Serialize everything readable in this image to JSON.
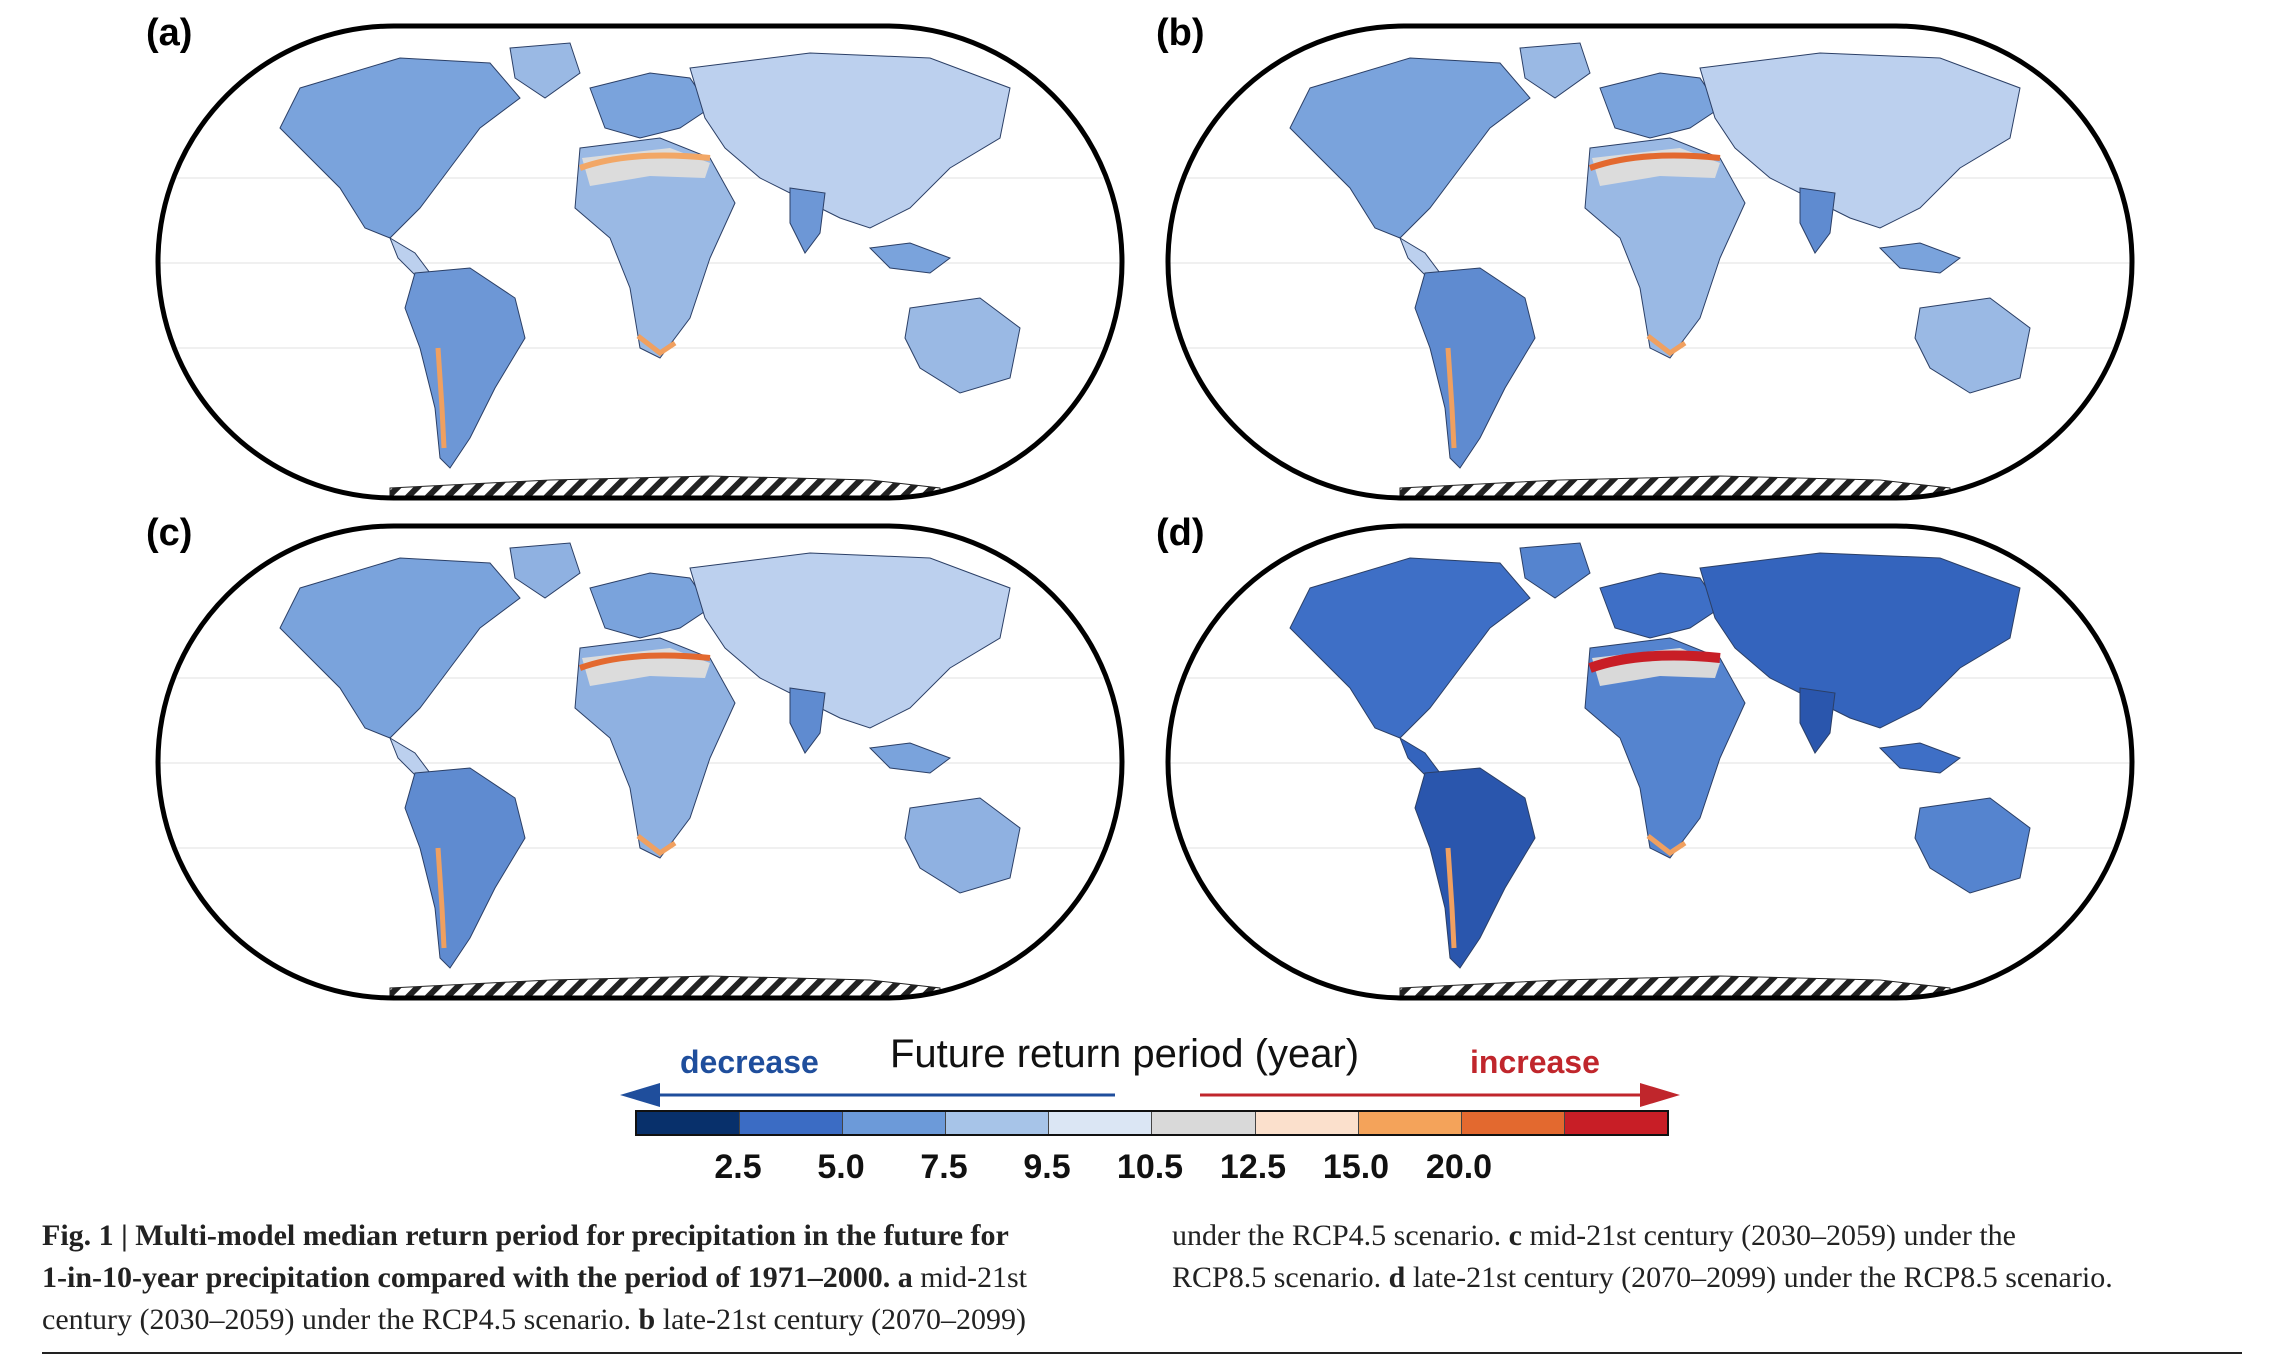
{
  "panels": [
    {
      "label": "(a)",
      "variant": "a"
    },
    {
      "label": "(b)",
      "variant": "b"
    },
    {
      "label": "(c)",
      "variant": "c"
    },
    {
      "label": "(d)",
      "variant": "d"
    }
  ],
  "legend": {
    "title": "Future return period (year)",
    "decrease_label": "decrease",
    "increase_label": "increase",
    "ticks": [
      "2.5",
      "5.0",
      "7.5",
      "9.5",
      "10.5",
      "12.5",
      "15.0",
      "20.0"
    ],
    "colors": [
      "#08306b",
      "#3b6cc4",
      "#6c9ad9",
      "#a7c4e8",
      "#dbe6f4",
      "#d9d9d9",
      "#fbe0cc",
      "#f4a35a",
      "#e3692f",
      "#c81e26"
    ],
    "decrease_color": "#1f4e9c",
    "increase_color": "#c0262c"
  },
  "caption": {
    "left_lines": [
      {
        "bold": "Fig. 1 | Multi-model median return period for precipitation in the future for",
        "rest": ""
      },
      {
        "bold": "1-in-10-year precipitation compared with the period of 1971–2000.",
        "rest": " ",
        "tag": "a",
        "after": " mid-21st"
      },
      {
        "bold": "",
        "rest": "century (2030–2059) under the RCP4.5 scenario. ",
        "tag": "b",
        "after": " late-21st century (2070–2099)"
      }
    ],
    "right_lines": [
      {
        "rest": "under the RCP4.5 scenario. ",
        "tag": "c",
        "after": " mid-21st century (2030–2059) under the"
      },
      {
        "rest": "RCP8.5 scenario. ",
        "tag": "d",
        "after": " late-21st century (2070–2099) under the RCP8.5 scenario."
      }
    ]
  }
}
